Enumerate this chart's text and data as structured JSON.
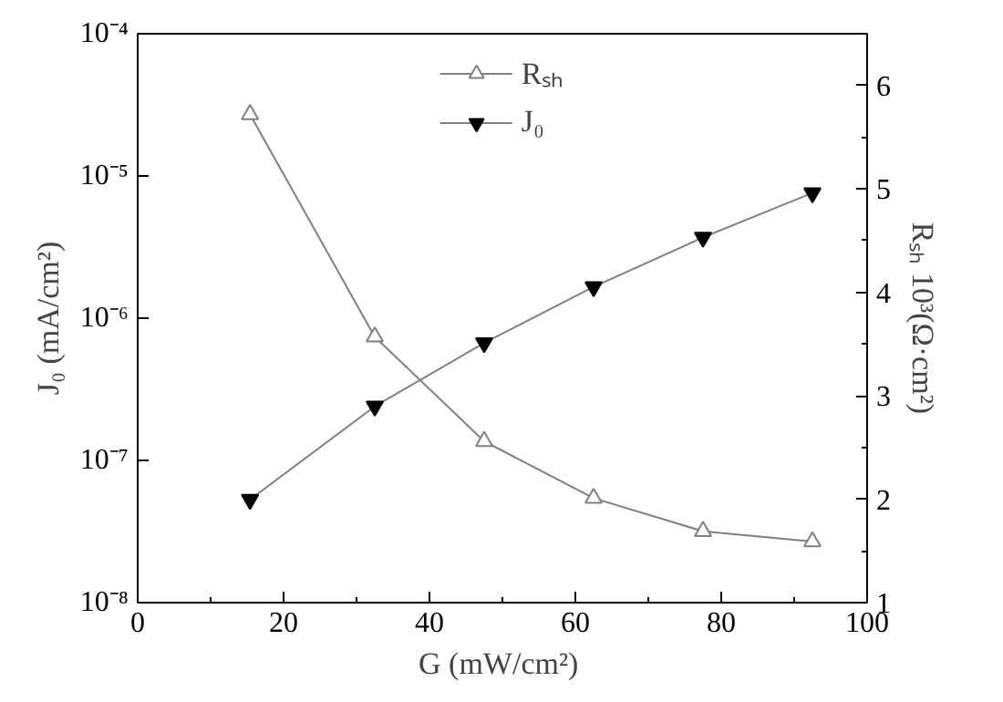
{
  "chart_data": {
    "type": "line",
    "xlabel": "G  (mW/cm²)",
    "ylabel": "J₀ (mA/cm²)",
    "y2label": "Rₛₕ 10³(Ω·cm²)",
    "x": [
      15.4,
      32.5,
      47.5,
      62.5,
      77.5,
      92.5
    ],
    "series": [
      {
        "name": "Rₛₕ",
        "color": "#808080",
        "marker": "triangle",
        "axis": "y2",
        "values": [
          5.72,
          3.57,
          2.56,
          2.01,
          1.69,
          1.59
        ]
      },
      {
        "name": "J₀",
        "color": "#000000",
        "marker": "triangle",
        "values": [
          5.3e-08,
          2.4e-07,
          6.7e-07,
          1.66e-06,
          3.7e-06,
          7.6e-06
        ]
      }
    ],
    "log": "y",
    "grid": false,
    "legend": "top",
    "line_style": "solid",
    "xlim": [
      0,
      100
    ],
    "xticks": [
      0,
      {
        "value": 10,
        "label": null
      },
      20,
      {
        "value": 30,
        "label": null
      },
      40,
      {
        "value": 50,
        "label": null
      },
      60,
      {
        "value": 70,
        "label": null
      },
      80,
      {
        "value": 90,
        "label": null
      },
      100
    ],
    "ylim": [
      1e-08,
      0.0001
    ],
    "yticks": [
      {
        "value": 1e-08,
        "label": "10⁻⁸"
      },
      {
        "value": 1e-07,
        "label": "10⁻⁷"
      },
      {
        "value": 1e-06,
        "label": "10⁻⁶"
      },
      {
        "value": 1e-05,
        "label": "10⁻⁵"
      },
      {
        "value": 0.0001,
        "label": "10⁻⁴"
      }
    ],
    "y2lim": [
      1,
      6.5
    ],
    "y2ticks": [
      1,
      {
        "value": 1.5,
        "label": null
      },
      2,
      {
        "value": 2.5,
        "label": null
      },
      3,
      {
        "value": 3.5,
        "label": null
      },
      4,
      {
        "value": 4.5,
        "label": null
      },
      5,
      {
        "value": 5.5,
        "label": null
      },
      6
    ]
  }
}
